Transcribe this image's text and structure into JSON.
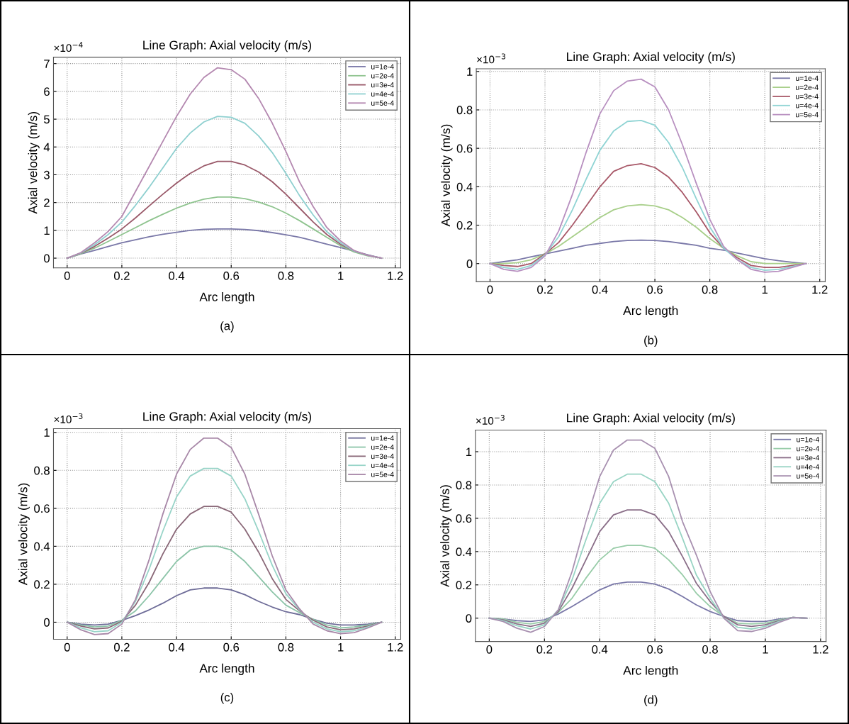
{
  "chart_data": [
    {
      "type": "line",
      "title": "Line Graph: Axial velocity (m/s)",
      "xlabel": "Arc length",
      "ylabel": "Axial velocity (m/s)",
      "annotations": [
        "×10$^{−4}$",
        "(a)"
      ],
      "x": [
        0,
        0.05,
        0.1,
        0.15,
        0.2,
        0.25,
        0.3,
        0.35,
        0.4,
        0.45,
        0.5,
        0.55,
        0.6,
        0.65,
        0.7,
        0.75,
        0.8,
        0.85,
        0.9,
        0.95,
        1.0,
        1.05,
        1.1,
        1.15
      ],
      "xlim": [
        -0.05,
        1.22
      ],
      "xticks": [
        0,
        0.2,
        0.4,
        0.6,
        0.8,
        1,
        1.2
      ],
      "ylim": [
        -0.35,
        7.23
      ],
      "yticks": [
        0,
        1,
        2,
        3,
        4,
        5,
        6,
        7
      ],
      "grid": true,
      "legend": "top right",
      "marker": "none",
      "line_style": "solid",
      "series": [
        {
          "name": "u=1e-4",
          "color": "#7a78a8",
          "values": [
            0,
            0.15,
            0.28,
            0.42,
            0.55,
            0.66,
            0.77,
            0.86,
            0.93,
            1.0,
            1.04,
            1.05,
            1.05,
            1.03,
            0.99,
            0.92,
            0.84,
            0.75,
            0.63,
            0.5,
            0.38,
            0.25,
            0.12,
            0
          ]
        },
        {
          "name": "u=2e-4",
          "color": "#8fc48f",
          "values": [
            0,
            0.16,
            0.36,
            0.6,
            0.85,
            1.1,
            1.35,
            1.58,
            1.8,
            1.98,
            2.12,
            2.2,
            2.2,
            2.14,
            2.02,
            1.85,
            1.62,
            1.35,
            1.05,
            0.75,
            0.45,
            0.22,
            0.08,
            0
          ]
        },
        {
          "name": "u=3e-4",
          "color": "#9a5a6a",
          "values": [
            0,
            0.18,
            0.42,
            0.72,
            1.05,
            1.45,
            1.88,
            2.3,
            2.7,
            3.05,
            3.32,
            3.48,
            3.48,
            3.35,
            3.1,
            2.75,
            2.3,
            1.8,
            1.3,
            0.85,
            0.5,
            0.25,
            0.1,
            0
          ]
        },
        {
          "name": "u=4e-4",
          "color": "#8fd0d0",
          "values": [
            0,
            0.19,
            0.48,
            0.85,
            1.3,
            1.9,
            2.55,
            3.25,
            3.95,
            4.5,
            4.9,
            5.1,
            5.07,
            4.85,
            4.4,
            3.8,
            3.05,
            2.25,
            1.55,
            0.95,
            0.55,
            0.25,
            0.1,
            0
          ]
        },
        {
          "name": "u=5e-4",
          "color": "#b488b0",
          "values": [
            0,
            0.2,
            0.55,
            0.96,
            1.5,
            2.4,
            3.3,
            4.2,
            5.1,
            5.9,
            6.5,
            6.85,
            6.78,
            6.44,
            5.75,
            4.86,
            3.84,
            2.74,
            1.85,
            1.1,
            0.62,
            0.27,
            0.1,
            0
          ]
        }
      ]
    },
    {
      "type": "line",
      "title": "Line Graph: Axial velocity (m/s)",
      "xlabel": "Arc length",
      "ylabel": "Axial velocity (m/s)",
      "annotations": [
        "×10$^{−3}$",
        "(b)"
      ],
      "x": [
        0,
        0.05,
        0.1,
        0.15,
        0.2,
        0.25,
        0.3,
        0.35,
        0.4,
        0.45,
        0.5,
        0.55,
        0.6,
        0.65,
        0.7,
        0.75,
        0.8,
        0.85,
        0.9,
        0.95,
        1.0,
        1.05,
        1.1,
        1.15
      ],
      "xlim": [
        -0.05,
        1.22
      ],
      "xticks": [
        0,
        0.2,
        0.4,
        0.6,
        0.8,
        1,
        1.2
      ],
      "ylim": [
        -0.094,
        1.014
      ],
      "yticks": [
        0,
        0.2,
        0.4,
        0.6,
        0.8,
        1
      ],
      "grid": true,
      "legend": "top right",
      "marker": "none",
      "line_style": "solid",
      "series": [
        {
          "name": "u=1e-4",
          "color": "#7a78a8",
          "values": [
            0,
            0.01,
            0.02,
            0.035,
            0.05,
            0.065,
            0.08,
            0.095,
            0.105,
            0.115,
            0.12,
            0.122,
            0.12,
            0.115,
            0.105,
            0.095,
            0.08,
            0.07,
            0.055,
            0.04,
            0.025,
            0.015,
            0.007,
            0
          ]
        },
        {
          "name": "u=2e-4",
          "color": "#a8cf8a",
          "values": [
            0,
            0,
            0.005,
            0.02,
            0.05,
            0.09,
            0.14,
            0.19,
            0.24,
            0.28,
            0.3,
            0.307,
            0.3,
            0.28,
            0.24,
            0.19,
            0.13,
            0.08,
            0.04,
            0.01,
            0,
            0,
            0,
            0
          ]
        },
        {
          "name": "u=3e-4",
          "color": "#a85868",
          "values": [
            0,
            -0.01,
            -0.015,
            0,
            0.05,
            0.11,
            0.2,
            0.3,
            0.4,
            0.48,
            0.51,
            0.52,
            0.5,
            0.45,
            0.37,
            0.27,
            0.16,
            0.08,
            0.03,
            -0.01,
            -0.02,
            -0.02,
            -0.01,
            0
          ]
        },
        {
          "name": "u=4e-4",
          "color": "#90d4d4",
          "values": [
            0,
            -0.02,
            -0.03,
            -0.01,
            0.045,
            0.14,
            0.28,
            0.44,
            0.59,
            0.69,
            0.74,
            0.745,
            0.72,
            0.63,
            0.5,
            0.34,
            0.19,
            0.08,
            0.02,
            -0.02,
            -0.035,
            -0.03,
            -0.015,
            0
          ]
        },
        {
          "name": "u=5e-4",
          "color": "#b890c0",
          "values": [
            0,
            -0.03,
            -0.04,
            -0.02,
            0.04,
            0.17,
            0.36,
            0.58,
            0.78,
            0.9,
            0.95,
            0.96,
            0.92,
            0.8,
            0.62,
            0.42,
            0.23,
            0.09,
            0.02,
            -0.03,
            -0.045,
            -0.04,
            -0.02,
            0
          ]
        }
      ]
    },
    {
      "type": "line",
      "title": "Line Graph: Axial velocity (m/s)",
      "xlabel": "Arc length",
      "ylabel": "Axial velocity (m/s)",
      "annotations": [
        "×10$^{−3}$",
        "(c)"
      ],
      "x": [
        0,
        0.05,
        0.1,
        0.15,
        0.2,
        0.25,
        0.3,
        0.35,
        0.4,
        0.45,
        0.5,
        0.55,
        0.6,
        0.65,
        0.7,
        0.75,
        0.8,
        0.85,
        0.9,
        0.95,
        1.0,
        1.05,
        1.1,
        1.15
      ],
      "xlim": [
        -0.05,
        1.22
      ],
      "xticks": [
        0,
        0.2,
        0.4,
        0.6,
        0.8,
        1,
        1.2
      ],
      "ylim": [
        -0.09,
        1.02
      ],
      "yticks": [
        0,
        0.2,
        0.4,
        0.6,
        0.8,
        1
      ],
      "grid": true,
      "legend": "top right",
      "marker": "none",
      "line_style": "solid",
      "series": [
        {
          "name": "u=1e-4",
          "color": "#6e6c98",
          "values": [
            0,
            -0.01,
            -0.015,
            -0.01,
            0.01,
            0.035,
            0.065,
            0.1,
            0.14,
            0.17,
            0.18,
            0.18,
            0.17,
            0.145,
            0.11,
            0.08,
            0.055,
            0.04,
            0.015,
            -0.005,
            -0.015,
            -0.015,
            -0.01,
            0
          ]
        },
        {
          "name": "u=2e-4",
          "color": "#8cc4a8",
          "values": [
            0,
            -0.015,
            -0.025,
            -0.02,
            0.01,
            0.06,
            0.14,
            0.23,
            0.32,
            0.38,
            0.4,
            0.4,
            0.38,
            0.32,
            0.24,
            0.16,
            0.09,
            0.05,
            0.015,
            -0.015,
            -0.03,
            -0.025,
            -0.015,
            0
          ]
        },
        {
          "name": "u=3e-4",
          "color": "#8a6878",
          "values": [
            0,
            -0.02,
            -0.035,
            -0.03,
            0.005,
            0.09,
            0.21,
            0.36,
            0.49,
            0.57,
            0.61,
            0.61,
            0.58,
            0.49,
            0.37,
            0.23,
            0.12,
            0.06,
            0.01,
            -0.025,
            -0.04,
            -0.035,
            -0.02,
            0
          ]
        },
        {
          "name": "u=4e-4",
          "color": "#98d4c8",
          "values": [
            0,
            -0.03,
            -0.05,
            -0.045,
            0,
            0.11,
            0.28,
            0.48,
            0.66,
            0.77,
            0.81,
            0.81,
            0.77,
            0.65,
            0.48,
            0.3,
            0.15,
            0.065,
            0,
            -0.035,
            -0.05,
            -0.045,
            -0.025,
            0
          ]
        },
        {
          "name": "u=5e-4",
          "color": "#a888a8",
          "values": [
            0,
            -0.04,
            -0.065,
            -0.06,
            -0.01,
            0.12,
            0.33,
            0.57,
            0.78,
            0.91,
            0.97,
            0.97,
            0.92,
            0.78,
            0.57,
            0.35,
            0.17,
            0.07,
            -0.01,
            -0.045,
            -0.06,
            -0.055,
            -0.03,
            0
          ]
        }
      ]
    },
    {
      "type": "line",
      "title": "Line Graph: Axial velocity (m/s)",
      "xlabel": "Arc length",
      "ylabel": "Axial velocity (m/s)",
      "annotations": [
        "×10$^{−3}$",
        "(d)"
      ],
      "x": [
        0,
        0.05,
        0.1,
        0.15,
        0.2,
        0.25,
        0.3,
        0.35,
        0.4,
        0.45,
        0.5,
        0.55,
        0.6,
        0.65,
        0.7,
        0.75,
        0.8,
        0.85,
        0.9,
        0.95,
        1.0,
        1.05,
        1.1,
        1.15
      ],
      "xlim": [
        -0.05,
        1.22
      ],
      "xticks": [
        0,
        0.2,
        0.4,
        0.6,
        0.8,
        1,
        1.2
      ],
      "ylim": [
        -0.14,
        1.13
      ],
      "yticks": [
        0,
        0.2,
        0.4,
        0.6,
        0.8,
        1
      ],
      "grid": true,
      "legend": "top right",
      "marker": "none",
      "line_style": "solid",
      "series": [
        {
          "name": "u=1e-4",
          "color": "#7a78a8",
          "values": [
            0,
            -0.005,
            -0.015,
            -0.02,
            -0.01,
            0.025,
            0.07,
            0.12,
            0.17,
            0.205,
            0.217,
            0.217,
            0.205,
            0.175,
            0.13,
            0.08,
            0.04,
            0.01,
            -0.015,
            -0.02,
            -0.02,
            -0.005,
            0.003,
            0
          ]
        },
        {
          "name": "u=2e-4",
          "color": "#98cca8",
          "values": [
            0,
            -0.005,
            -0.025,
            -0.035,
            -0.02,
            0.035,
            0.12,
            0.24,
            0.35,
            0.42,
            0.437,
            0.437,
            0.42,
            0.35,
            0.26,
            0.15,
            0.07,
            0.01,
            -0.03,
            -0.035,
            -0.03,
            -0.01,
            0.005,
            0
          ]
        },
        {
          "name": "u=3e-4",
          "color": "#8a6e88",
          "values": [
            0,
            -0.01,
            -0.035,
            -0.05,
            -0.03,
            0.04,
            0.18,
            0.35,
            0.52,
            0.62,
            0.65,
            0.65,
            0.62,
            0.52,
            0.37,
            0.21,
            0.1,
            0.01,
            -0.04,
            -0.05,
            -0.04,
            -0.015,
            0.005,
            0
          ]
        },
        {
          "name": "u=4e-4",
          "color": "#98d4c4",
          "values": [
            0,
            -0.015,
            -0.045,
            -0.065,
            -0.04,
            0.05,
            0.23,
            0.47,
            0.69,
            0.82,
            0.865,
            0.865,
            0.82,
            0.69,
            0.48,
            0.26,
            0.12,
            0,
            -0.055,
            -0.065,
            -0.05,
            -0.02,
            0.005,
            0
          ]
        },
        {
          "name": "u=5e-4",
          "color": "#a890b0",
          "values": [
            0,
            -0.02,
            -0.06,
            -0.085,
            -0.05,
            0.05,
            0.28,
            0.58,
            0.85,
            1.01,
            1.07,
            1.07,
            1.02,
            0.85,
            0.58,
            0.38,
            0.16,
            0,
            -0.075,
            -0.08,
            -0.06,
            -0.025,
            0.005,
            0
          ]
        }
      ]
    }
  ]
}
